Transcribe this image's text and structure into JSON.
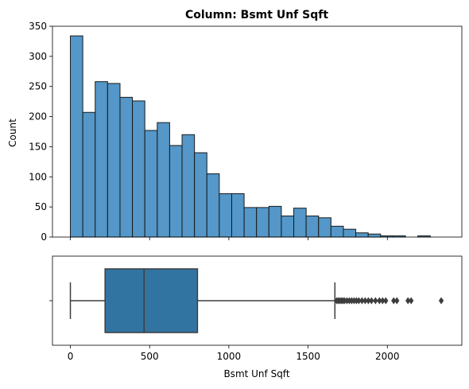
{
  "chart_data": [
    {
      "type": "bar",
      "title": "Column: Bsmt Unf Sqft",
      "xlabel": "",
      "ylabel": "Count",
      "ylim": [
        0,
        350
      ],
      "yticks": [
        0,
        50,
        100,
        150,
        200,
        250,
        300,
        350
      ],
      "xlim": [
        -113,
        2470
      ],
      "xticks": [
        0,
        500,
        1000,
        1500,
        2000
      ],
      "show_x_tick_labels": false,
      "grid": false,
      "bin_width": 78.3,
      "bin_start": 0,
      "values": [
        334,
        207,
        258,
        255,
        232,
        226,
        177,
        190,
        152,
        170,
        140,
        105,
        72,
        72,
        49,
        49,
        51,
        35,
        48,
        35,
        32,
        18,
        13,
        7,
        5,
        2,
        2,
        0,
        2,
        0
      ]
    },
    {
      "type": "box",
      "title": "",
      "xlabel": "Bsmt Unf Sqft",
      "ylabel": "",
      "xlim": [
        -113,
        2470
      ],
      "xticks": [
        0,
        500,
        1000,
        1500,
        2000
      ],
      "ytick_labels": [
        ""
      ],
      "grid": false,
      "whisker_low": 0,
      "q1": 219,
      "median": 465,
      "q3": 802,
      "whisker_high": 1669,
      "fliers": [
        1680,
        1690,
        1700,
        1710,
        1720,
        1730,
        1745,
        1760,
        1775,
        1790,
        1805,
        1820,
        1840,
        1860,
        1880,
        1900,
        1925,
        1950,
        1970,
        1990,
        2040,
        2060,
        2130,
        2150,
        2340
      ]
    }
  ]
}
